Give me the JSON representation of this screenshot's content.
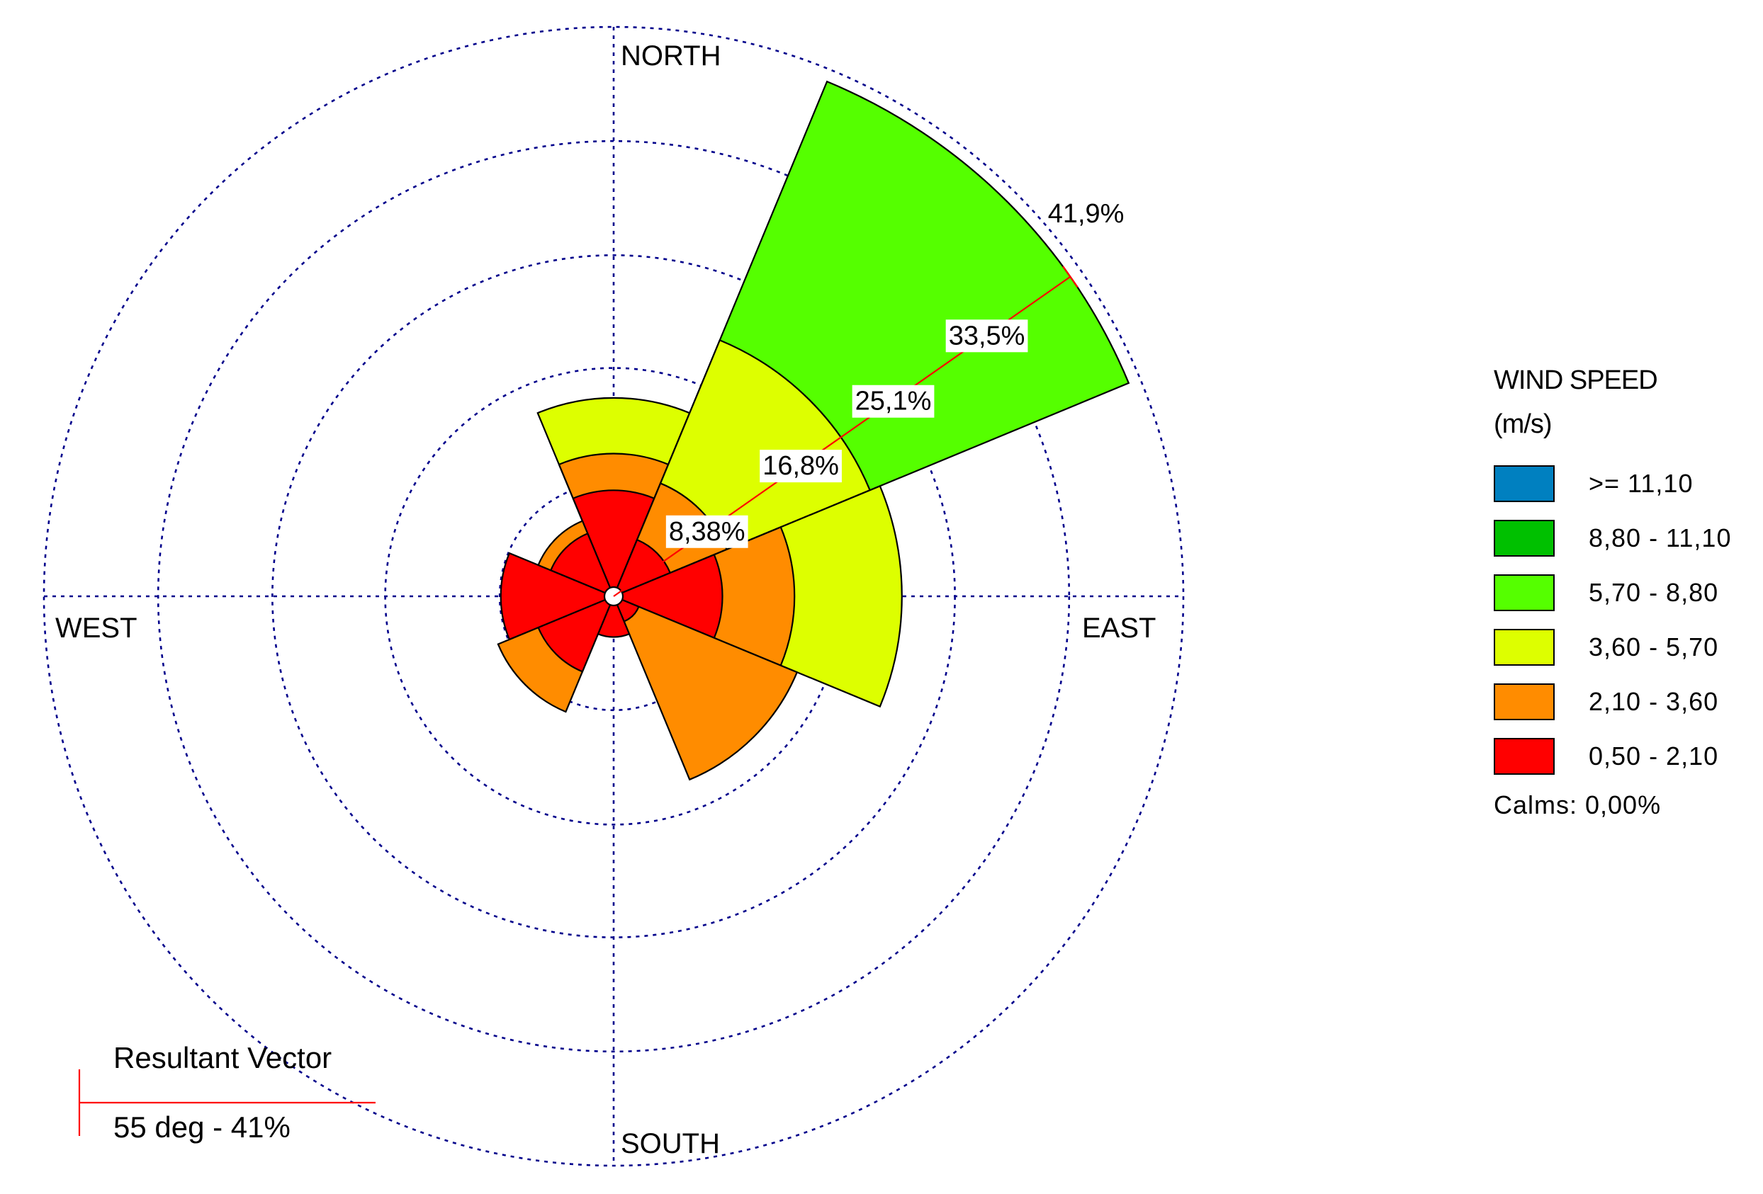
{
  "chart_data": {
    "type": "wind_rose",
    "title": "",
    "compass_labels": {
      "north": "NORTH",
      "east": "EAST",
      "south": "SOUTH",
      "west": "WEST"
    },
    "ring_values": [
      8.38,
      16.8,
      25.1,
      33.5,
      41.9
    ],
    "ring_labels": [
      "8,38%",
      "16,8%",
      "25,1%",
      "33,5%",
      "41,9%"
    ],
    "max_ring": 41.9,
    "sector_width_deg": 45,
    "legend": {
      "title_line1": "WIND SPEED",
      "title_line2": "(m/s)",
      "classes": [
        {
          "label": ">= 11,10",
          "color": "#0080c0"
        },
        {
          "label": "8,80 - 11,10",
          "color": "#00c000"
        },
        {
          "label": "5,70 - 8,80",
          "color": "#55ff00"
        },
        {
          "label": "3,60 - 5,70",
          "color": "#ddff00"
        },
        {
          "label": "2,10 - 3,60",
          "color": "#ff8c00"
        },
        {
          "label": "0,50 - 2,10",
          "color": "#ff0000"
        }
      ],
      "calms": "Calms: 0,00%"
    },
    "sectors": [
      {
        "direction_deg": 0,
        "cumulative_percent": [
          7.8,
          10.5,
          14.6
        ]
      },
      {
        "direction_deg": 45,
        "cumulative_percent": [
          4.5,
          9.0,
          20.4,
          41.0
        ]
      },
      {
        "direction_deg": 90,
        "cumulative_percent": [
          8.0,
          13.3,
          21.2
        ]
      },
      {
        "direction_deg": 135,
        "cumulative_percent": [
          2.0,
          14.6
        ]
      },
      {
        "direction_deg": 180,
        "cumulative_percent": [
          3.0
        ]
      },
      {
        "direction_deg": 225,
        "cumulative_percent": [
          6.0,
          9.2
        ]
      },
      {
        "direction_deg": 270,
        "cumulative_percent": [
          8.3
        ]
      },
      {
        "direction_deg": 315,
        "cumulative_percent": [
          5.0,
          6.0
        ]
      }
    ],
    "resultant_vector": {
      "title": "Resultant Vector",
      "label": "55 deg - 41%",
      "direction_deg": 55,
      "percent": 41
    }
  }
}
